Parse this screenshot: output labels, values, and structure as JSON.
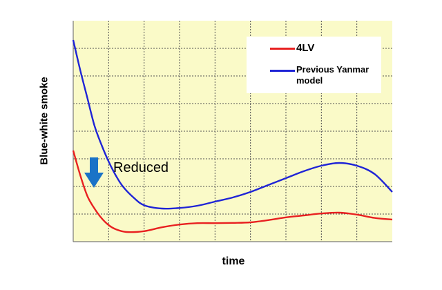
{
  "chart_data": {
    "type": "line",
    "title": "",
    "xlabel": "time",
    "ylabel": "Blue-white smoke",
    "xlim": [
      0,
      9
    ],
    "ylim": [
      0,
      8
    ],
    "grid": true,
    "legend_position": "top-right",
    "background_color": "#fafac8",
    "grid_color": "#505050",
    "annotation": "Reduced",
    "annotation_arrow_color": "#1a73c7",
    "series": [
      {
        "name": "4LV",
        "color": "#e82020",
        "x": [
          0,
          0.2,
          0.4,
          0.6,
          0.8,
          1.0,
          1.2,
          1.5,
          2.0,
          2.5,
          3.0,
          3.5,
          4.0,
          4.5,
          5.0,
          5.5,
          6.0,
          6.5,
          7.0,
          7.5,
          8.0,
          8.5,
          9.0
        ],
        "y": [
          3.3,
          2.4,
          1.65,
          1.2,
          0.85,
          0.6,
          0.45,
          0.35,
          0.38,
          0.52,
          0.62,
          0.67,
          0.67,
          0.68,
          0.7,
          0.78,
          0.88,
          0.95,
          1.02,
          1.05,
          0.98,
          0.86,
          0.8
        ]
      },
      {
        "name": "Previous Yanmar model",
        "color": "#1f24d6",
        "x": [
          0,
          0.2,
          0.4,
          0.6,
          0.8,
          1.0,
          1.2,
          1.4,
          1.7,
          2.0,
          2.5,
          3.0,
          3.5,
          4.0,
          4.5,
          5.0,
          5.5,
          6.0,
          6.5,
          7.0,
          7.5,
          8.0,
          8.5,
          9.0
        ],
        "y": [
          7.3,
          6.2,
          5.2,
          4.2,
          3.5,
          2.9,
          2.4,
          2.0,
          1.6,
          1.32,
          1.2,
          1.22,
          1.3,
          1.45,
          1.6,
          1.8,
          2.05,
          2.3,
          2.55,
          2.75,
          2.85,
          2.75,
          2.45,
          1.8
        ]
      }
    ]
  }
}
